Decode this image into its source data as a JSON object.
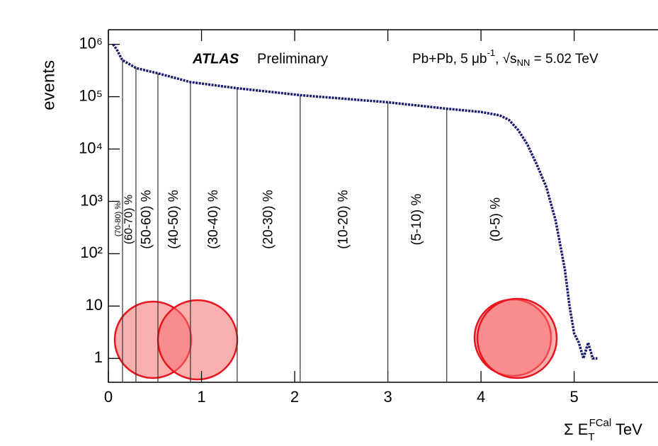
{
  "chart_data": {
    "type": "line",
    "title_bold": "ATLAS",
    "title": "Preliminary",
    "energy_label": [
      "Pb+Pb, 5 μb",
      "-1",
      ", √s",
      "NN",
      " = 5.02 TeV"
    ],
    "y_label": "events",
    "x_label": [
      "Σ E",
      "T",
      "FCal",
      " TeV"
    ],
    "log_y": true,
    "xlim": [
      0,
      5.9
    ],
    "ylim": [
      0.35,
      1900000
    ],
    "xticks": [
      0,
      1,
      2,
      3,
      4,
      5
    ],
    "yticks": [
      {
        "value": 1000000,
        "label": "10⁶"
      },
      {
        "value": 100000,
        "label": "10⁵"
      },
      {
        "value": 10000,
        "label": "10⁴"
      },
      {
        "value": 1000,
        "label": "10³"
      },
      {
        "value": 100,
        "label": "10²"
      },
      10,
      1
    ],
    "centrality_edges": [
      0.152,
      0.296,
      0.532,
      0.881,
      1.383,
      2.059,
      3.0,
      3.632
    ],
    "centrality_labels": [
      "(70-80) %",
      "(60-70) %",
      "(50-60) %",
      "(40-50) %",
      "(30-40) %",
      "(20-30) %",
      "(10-20) %",
      "(5-10) %",
      "(0-5) %"
    ],
    "series": [
      {
        "color": "#1a1a70",
        "x": [
          0.05,
          0.09,
          0.15,
          0.3,
          0.53,
          0.88,
          1.38,
          2.06,
          3.0,
          3.63,
          4.0,
          4.2,
          4.3,
          4.4,
          4.5,
          4.6,
          4.7,
          4.8,
          4.85,
          4.9,
          4.95,
          5.0,
          5.05,
          5.1,
          5.15,
          5.2,
          5.25
        ],
        "values": [
          1000000,
          800000,
          500000,
          350000,
          280000,
          190000,
          145000,
          107000,
          78000,
          59000,
          51000,
          44000,
          36000,
          23000,
          12000,
          5000,
          1900,
          440,
          150,
          50,
          10,
          3,
          2,
          1,
          2,
          1,
          1
        ]
      }
    ]
  }
}
